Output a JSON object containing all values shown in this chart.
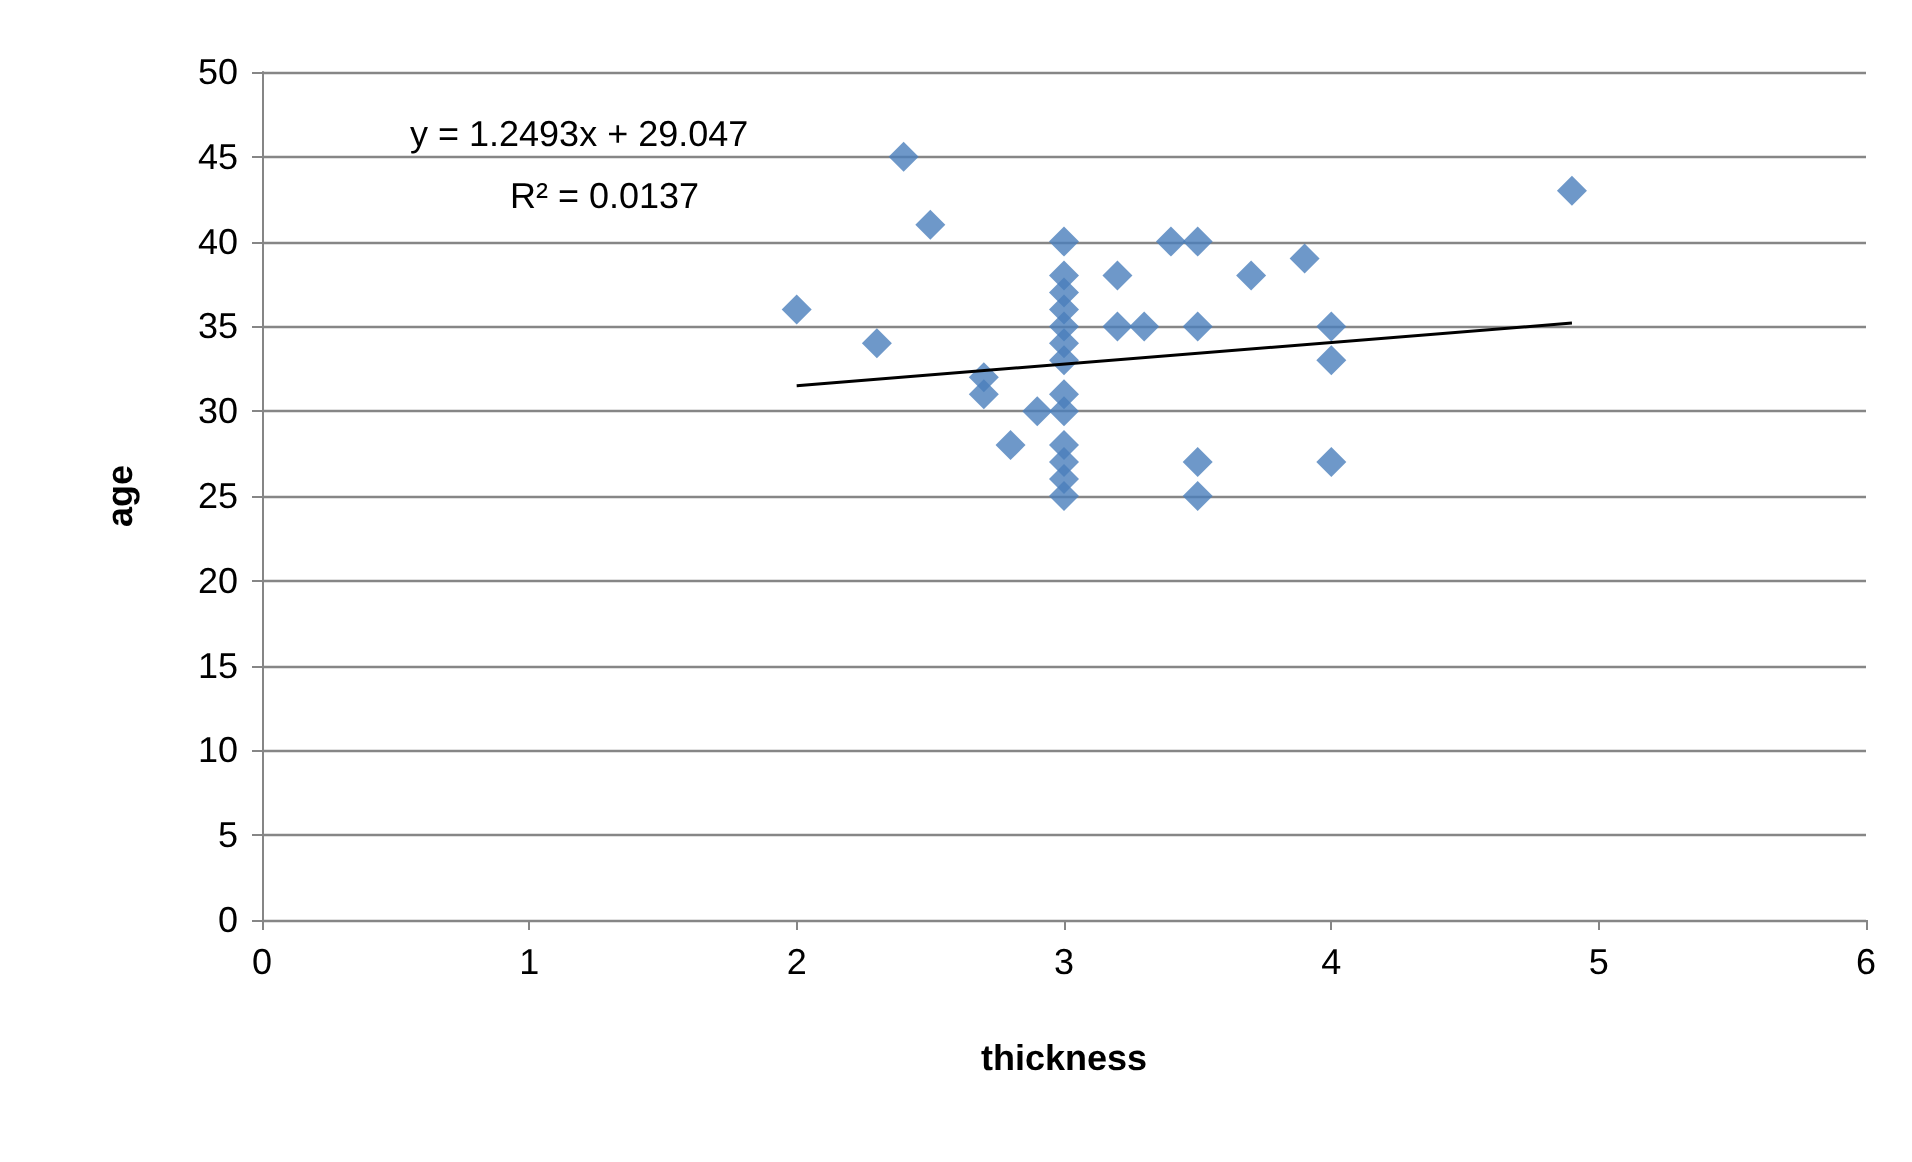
{
  "chart_data": {
    "type": "scatter",
    "xlabel": "thickness",
    "ylabel": "age",
    "xlim": [
      0,
      6
    ],
    "xticks": [
      0,
      1,
      2,
      3,
      4,
      5,
      6
    ],
    "ylim": [
      0,
      50
    ],
    "yticks": [
      0,
      5,
      10,
      15,
      20,
      25,
      30,
      35,
      40,
      45,
      50
    ],
    "grid": "y",
    "annotations": [
      "y = 1.2493x + 29.047",
      "R² = 0.0137"
    ],
    "series": [
      {
        "marker": "diamond",
        "color": "#4a7ebb",
        "x": [
          2.0,
          2.3,
          2.4,
          2.5,
          2.7,
          2.7,
          2.8,
          2.9,
          3.0,
          3.0,
          3.0,
          3.0,
          3.0,
          3.0,
          3.0,
          3.0,
          3.0,
          3.0,
          3.0,
          3.0,
          3.0,
          3.2,
          3.2,
          3.3,
          3.4,
          3.5,
          3.5,
          3.5,
          3.5,
          3.7,
          3.9,
          4.0,
          4.0,
          4.0,
          4.9
        ],
        "values": [
          36,
          34,
          45,
          41,
          32,
          31,
          28,
          30,
          40,
          38,
          37,
          36,
          35,
          34,
          33,
          31,
          30,
          28,
          27,
          26,
          25,
          38,
          35,
          35,
          40,
          40,
          35,
          27,
          25,
          38,
          39,
          35,
          33,
          27,
          43
        ]
      },
      {
        "type": "line",
        "marker": "none",
        "color": "#000000",
        "x": [
          2.0,
          4.9
        ],
        "values": [
          31.5,
          35.2
        ]
      }
    ]
  }
}
